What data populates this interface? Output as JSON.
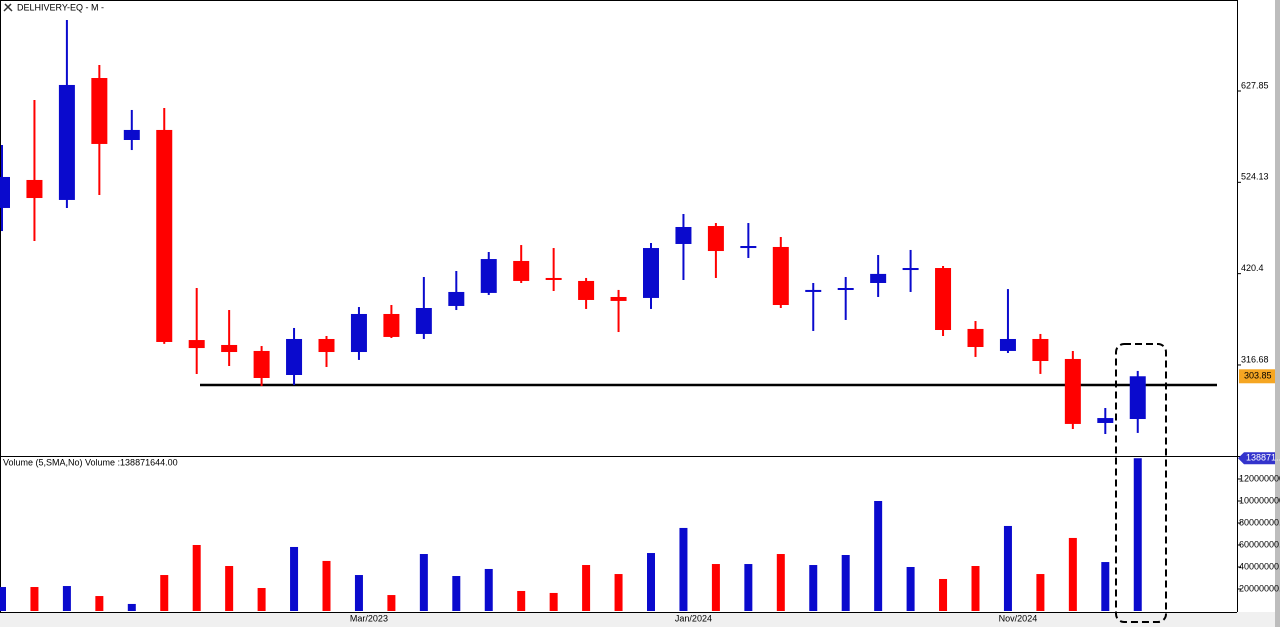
{
  "chart_data": {
    "type": "candlestick",
    "title": "DELHIVERY-EQ - M -",
    "categories": [
      null,
      null,
      null,
      null,
      null,
      null,
      null,
      null,
      null,
      null,
      null,
      "Mar/2023",
      null,
      null,
      null,
      null,
      null,
      null,
      null,
      null,
      null,
      "Jan/2024",
      null,
      null,
      null,
      null,
      null,
      null,
      null,
      null,
      null,
      "Nov/2024",
      null,
      null,
      null,
      null
    ],
    "open": [
      495.0,
      526.8,
      504.1,
      642.6,
      572.2,
      583.6,
      345.0,
      339.4,
      332.6,
      305.3,
      346.2,
      331.4,
      374.6,
      351.9,
      383.7,
      398.5,
      434.8,
      415.5,
      412.1,
      393.9,
      392.8,
      454.1,
      474.5,
      449.5,
      450.7,
      399.6,
      401.9,
      409.8,
      424.6,
      426.8,
      357.6,
      332.6,
      346.2,
      323.5,
      250.8,
      255.3
    ],
    "high": [
      566.5,
      617.6,
      708.5,
      657.4,
      606.3,
      608.5,
      404.1,
      379.1,
      338.2,
      358.7,
      349.6,
      382.5,
      384.8,
      416.6,
      423.4,
      445.0,
      452.9,
      449.5,
      415.5,
      401.9,
      455.2,
      488.2,
      477.9,
      477.9,
      462.0,
      409.8,
      416.6,
      441.6,
      447.3,
      429.1,
      366.6,
      402.9,
      351.9,
      332.6,
      267.8,
      309.9
    ],
    "low": [
      468.8,
      457.5,
      495.0,
      509.7,
      560.8,
      340.6,
      306.5,
      315.5,
      292.8,
      293.9,
      314.4,
      322.4,
      347.3,
      346.2,
      379.1,
      396.2,
      409.8,
      400.7,
      380.3,
      354.1,
      380.3,
      413.2,
      415.5,
      438.2,
      381.4,
      355.3,
      367.8,
      393.9,
      399.6,
      349.6,
      325.8,
      330.3,
      306.5,
      244.0,
      238.3,
      239.5
    ],
    "close": [
      530.2,
      506.3,
      634.7,
      567.7,
      583.6,
      342.8,
      335.9,
      331.4,
      301.9,
      346.2,
      331.4,
      374.6,
      348.5,
      381.4,
      399.6,
      437.0,
      412.1,
      413.2,
      390.5,
      389.4,
      449.5,
      473.4,
      446.1,
      451.8,
      384.8,
      401.9,
      404.1,
      420.1,
      426.8,
      356.4,
      337.1,
      346.2,
      321.2,
      249.7,
      256.4,
      303.85
    ],
    "up_color": "#0a0acd",
    "down_color": "#ff0000",
    "ylim": [
      213.3,
      731.2
    ],
    "yticks": [
      627.85,
      524.13,
      420.4,
      316.68
    ],
    "support_level": 294,
    "volume": {
      "title": "Volume (5,SMA,No) Volume :138871644.00",
      "values": [
        21800000,
        21800000,
        22700000,
        13600000,
        6400000,
        32700000,
        60000000,
        40900000,
        20900000,
        58200000,
        45500000,
        32700000,
        14500000,
        51800000,
        31800000,
        38200000,
        18200000,
        16400000,
        41800000,
        33600000,
        52700000,
        75500000,
        42700000,
        42700000,
        51800000,
        41800000,
        50900000,
        100000000,
        40000000,
        29100000,
        40900000,
        77300000,
        33600000,
        66400000,
        44500000,
        138871644
      ],
      "ylim": [
        0,
        140900000
      ],
      "yticks": [
        {
          "value": 120000000,
          "label": "120000000.0"
        },
        {
          "value": 100000000,
          "label": "100000000.0"
        },
        {
          "value": 80000000,
          "label": "80000000.0"
        },
        {
          "value": 60000000,
          "label": "60000000.0"
        },
        {
          "value": 40000000,
          "label": "40000000.0"
        },
        {
          "value": 20000000,
          "label": "20000000.0"
        }
      ],
      "tag_label": "138871..."
    }
  }
}
